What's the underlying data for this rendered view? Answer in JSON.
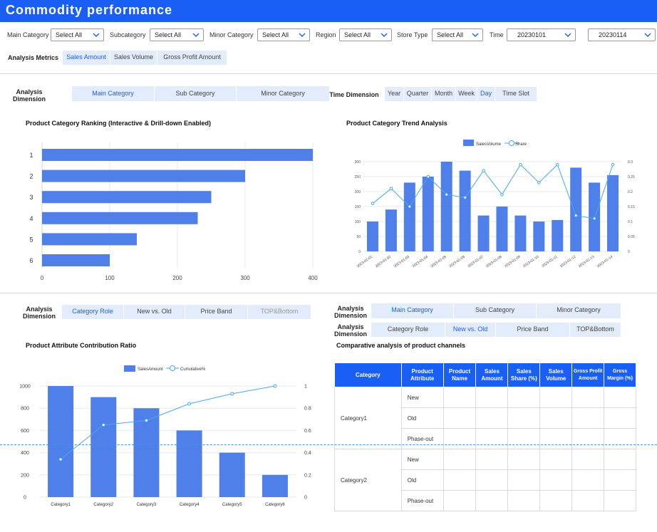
{
  "app": {
    "title": "Commodity performance"
  },
  "filters": {
    "main_category": {
      "label": "Main Category",
      "value": "Select All"
    },
    "subcategory": {
      "label": "Subcategory",
      "value": "Select All"
    },
    "minor_category": {
      "label": "Minor Category",
      "value": "Select All"
    },
    "region": {
      "label": "Region",
      "value": "Select All"
    },
    "store_type": {
      "label": "Store Type",
      "value": "Select All"
    },
    "time": {
      "label": "Time",
      "start": "20230101",
      "end": "20230114"
    }
  },
  "analysis_metrics": {
    "label": "Analysis Metrics",
    "tabs": [
      "Sales Amount",
      "Sales Volume",
      "Gross Profit Amount"
    ],
    "active": "Sales Amount"
  },
  "section1": {
    "dimension_label": "Analysis Dimension",
    "dimension_tabs": [
      "Main Category",
      "Sub Category",
      "Minor Category"
    ],
    "time_label": "Time Dimension",
    "time_tabs": [
      "Year",
      "Quarter",
      "Month",
      "Week",
      "Day",
      "Time Slot"
    ]
  },
  "section2": {
    "left_dimension_label": "Analysis Dimension",
    "left_tabs": [
      "Category Role",
      "New vs. Old",
      "Price Band",
      "TOP&Bottom"
    ],
    "right_dimension_label_1": "Analysis Dimension",
    "right_tabs_1": [
      "Main Category",
      "Sub Category",
      "Minor Category"
    ],
    "right_dimension_label_2": "Analysis Dimension",
    "right_tabs_2": [
      "Category Role",
      "New vs. Old",
      "Price Band",
      "TOP&Bottom"
    ]
  },
  "colors": {
    "header": "#1a5ff5",
    "bar": "#4f7fe8",
    "line": "#4aa8e8",
    "tab_bg": "#e3ecfb",
    "accent": "#1a5ff5"
  },
  "chart_data": [
    {
      "type": "bar",
      "orientation": "horizontal",
      "title": "Product Category Ranking (Interactive & Drill-down Enabled)",
      "categories": [
        "1",
        "2",
        "3",
        "4",
        "5",
        "6"
      ],
      "values": [
        400,
        300,
        250,
        230,
        140,
        100
      ],
      "xlim": [
        0,
        400
      ],
      "xticks": [
        0,
        100,
        200,
        300,
        400
      ]
    },
    {
      "type": "bar",
      "title": "Product Category Trend Analysis",
      "categories": [
        "2023-01-01",
        "2023-01-02",
        "2023-01-03",
        "2023-01-04",
        "2023-01-05",
        "2023-01-06",
        "2023-01-07",
        "2023-01-08",
        "2023-01-09",
        "2023-01-10",
        "2023-01-11",
        "2023-01-12",
        "2023-01-13",
        "2023-01-14"
      ],
      "series": [
        {
          "name": "SalesVolume",
          "type": "bar",
          "axis": "left",
          "values": [
            100,
            140,
            230,
            250,
            300,
            270,
            120,
            150,
            120,
            100,
            105,
            280,
            230,
            255
          ]
        },
        {
          "name": "Share",
          "type": "line",
          "axis": "right",
          "values": [
            0.16,
            0.21,
            0.15,
            0.25,
            0.19,
            0.18,
            0.27,
            0.19,
            0.29,
            0.23,
            0.29,
            0.12,
            0.11,
            0.29
          ]
        }
      ],
      "ylim_left": [
        0,
        300
      ],
      "yticks_left": [
        0,
        50,
        100,
        150,
        200,
        250,
        300
      ],
      "ylim_right": [
        0,
        0.3
      ],
      "yticks_right": [
        "0",
        "0.05",
        "0.1",
        "0.15",
        "0.2",
        "0.25",
        "0.3"
      ],
      "legend_position": "top"
    },
    {
      "type": "bar",
      "title": "Product Attribute Contribution Ratio",
      "categories": [
        "Category1",
        "Category2",
        "Category3",
        "Category4",
        "Category5",
        "Category6"
      ],
      "series": [
        {
          "name": "SalesAmount",
          "type": "bar",
          "axis": "left",
          "values": [
            1000,
            900,
            800,
            600,
            400,
            200
          ]
        },
        {
          "name": "Cumulative%",
          "type": "line",
          "axis": "right",
          "values": [
            0.34,
            0.65,
            0.69,
            0.84,
            0.93,
            1.0
          ]
        }
      ],
      "ylim_left": [
        0,
        1000
      ],
      "yticks_left": [
        0,
        200,
        400,
        600,
        800,
        1000
      ],
      "ylim_right": [
        0,
        1
      ],
      "yticks_right": [
        "0",
        "0.2",
        "0.4",
        "0.6",
        "0.8",
        "1"
      ],
      "legend_position": "top"
    }
  ],
  "channel_table": {
    "title": "Comparative analysis of product channels",
    "headers": [
      "Category",
      "Product Attribute",
      "Product Name",
      "Sales Amount",
      "Sales Share (%)",
      "Sales Volume",
      "Gross Profit Amount",
      "Gross Margin (%)"
    ],
    "groups": [
      {
        "category": "Category1",
        "attributes": [
          "New",
          "Old",
          "Phase-out"
        ]
      },
      {
        "category": "Category2",
        "attributes": [
          "New",
          "Old",
          "Phase-out"
        ]
      }
    ]
  }
}
